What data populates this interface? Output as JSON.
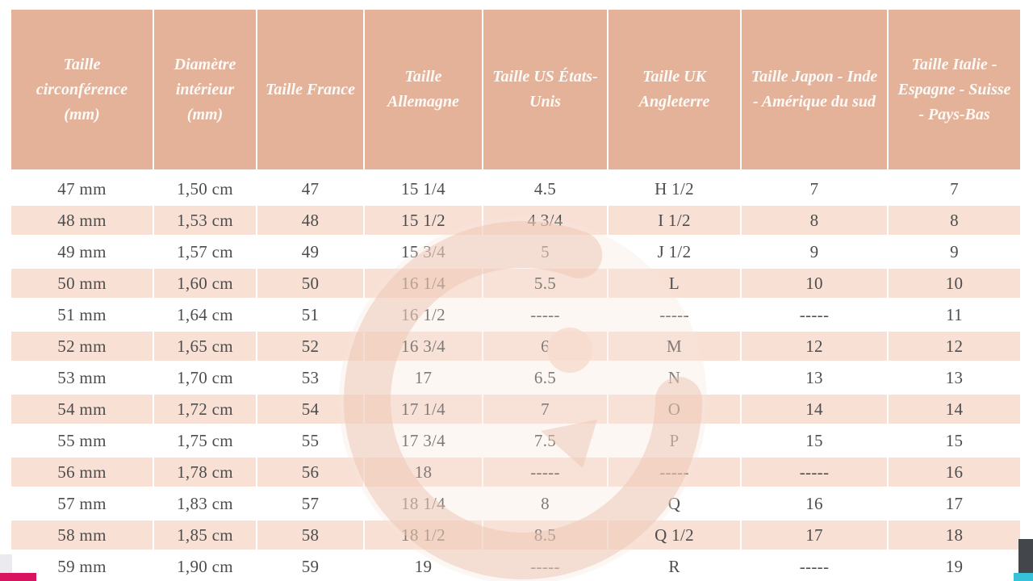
{
  "chart_data": {
    "type": "table",
    "title": "",
    "columns": [
      "Taille circonférence (mm)",
      "Diamètre intérieur (mm)",
      "Taille France",
      "Taille Allemagne",
      "Taille US États-Unis",
      "Taille UK Angleterre",
      "Taille Japon - Inde - Amérique du sud",
      "Taille Italie - Espagne - Suisse - Pays-Bas"
    ],
    "rows": [
      [
        "47 mm",
        "1,50 cm",
        "47",
        "15 1/4",
        "4.5",
        "H 1/2",
        "7",
        "7"
      ],
      [
        "48 mm",
        "1,53 cm",
        "48",
        "15 1/2",
        "4 3/4",
        "I 1/2",
        "8",
        "8"
      ],
      [
        "49 mm",
        "1,57 cm",
        "49",
        "15 3/4",
        "5",
        "J 1/2",
        "9",
        "9"
      ],
      [
        "50 mm",
        "1,60 cm",
        "50",
        "16 1/4",
        "5.5",
        "L",
        "10",
        "10"
      ],
      [
        "51 mm",
        "1,64 cm",
        "51",
        "16 1/2",
        "-----",
        "-----",
        "-----",
        "11"
      ],
      [
        "52 mm",
        "1,65 cm",
        "52",
        "16 3/4",
        "6",
        "M",
        "12",
        "12"
      ],
      [
        "53 mm",
        "1,70 cm",
        "53",
        "17",
        "6.5",
        "N",
        "13",
        "13"
      ],
      [
        "54 mm",
        "1,72 cm",
        "54",
        "17 1/4",
        "7",
        "O",
        "14",
        "14"
      ],
      [
        "55 mm",
        "1,75 cm",
        "55",
        "17 3/4",
        "7.5",
        "P",
        "15",
        "15"
      ],
      [
        "56 mm",
        "1,78 cm",
        "56",
        "18",
        "-----",
        "-----",
        "-----",
        "16"
      ],
      [
        "57 mm",
        "1,83 cm",
        "57",
        "18 1/4",
        "8",
        "Q",
        "16",
        "17"
      ],
      [
        "58 mm",
        "1,85 cm",
        "58",
        "18 1/2",
        "8.5",
        "Q 1/2",
        "17",
        "18"
      ],
      [
        "59 mm",
        "1,90 cm",
        "59",
        "19",
        "-----",
        "R",
        "-----",
        "19"
      ]
    ],
    "layout": {
      "striped_rows": "even rows peach, header salmon",
      "grid": "white 2px separators"
    }
  },
  "watermark": {
    "glyph": "G"
  },
  "colors": {
    "header_bg": "#e3b298",
    "header_text": "#fdfaf8",
    "stripe_bg": "#f8e0d4",
    "body_text": "#4d4d4d",
    "watermark_ring": "#ecc5b1",
    "accent_magenta": "#d8135f",
    "scrollbar_dark": "#43464b",
    "widget_cyan": "#38c2da"
  }
}
